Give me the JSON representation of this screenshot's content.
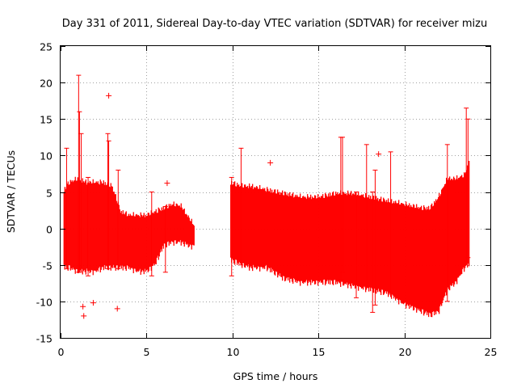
{
  "chart_data": {
    "type": "scatter",
    "title": "Day 331 of 2011, Sidereal Day-to-day VTEC variation (SDTVAR) for receiver mizu",
    "xlabel": "GPS time / hours",
    "ylabel": "SDTVAR / TECUs",
    "xlim": [
      0,
      25
    ],
    "ylim": [
      -15,
      25
    ],
    "xticks": [
      0,
      5,
      10,
      15,
      20,
      25
    ],
    "yticks": [
      -15,
      -10,
      -5,
      0,
      5,
      10,
      15,
      20,
      25
    ],
    "grid": true,
    "marker": "+",
    "series_color": "#ff0000",
    "series": [
      {
        "name": "SDTVAR",
        "envelope": {
          "x": [
            0.2,
            0.5,
            1.0,
            1.5,
            2.0,
            2.5,
            3.0,
            3.5,
            4.0,
            4.5,
            5.0,
            5.5,
            6.0,
            6.5,
            7.0,
            7.5,
            7.8
          ],
          "upper": [
            5,
            6,
            6.5,
            6,
            6,
            6,
            5.5,
            2,
            1.5,
            1.5,
            1.5,
            2,
            2.5,
            3,
            2.8,
            1,
            0
          ],
          "lower": [
            -5,
            -5,
            -5.5,
            -5.5,
            -5.5,
            -5,
            -5,
            -5,
            -5,
            -5.5,
            -5.5,
            -4.5,
            -2,
            -1.5,
            -1.5,
            -2,
            -2
          ]
        },
        "envelope2": {
          "x": [
            9.9,
            10.5,
            11,
            12,
            13,
            14,
            15,
            16,
            17,
            18,
            19,
            20,
            21,
            21.5,
            22,
            22.5,
            23,
            23.5,
            23.8
          ],
          "upper": [
            6,
            5.5,
            5.5,
            5,
            4.5,
            4,
            4,
            4.5,
            4.5,
            4,
            3.5,
            3,
            2.5,
            2.5,
            4,
            6.5,
            6.5,
            7,
            9
          ],
          "lower": [
            -4,
            -4.5,
            -5,
            -5,
            -6.5,
            -7,
            -7,
            -7,
            -7.5,
            -8,
            -8.5,
            -10,
            -11,
            -11.5,
            -11,
            -8,
            -7,
            -5,
            -4.5
          ]
        },
        "spikes": [
          {
            "x": 0.35,
            "lo": -5.5,
            "hi": 11
          },
          {
            "x": 1.05,
            "lo": -6,
            "hi": 21
          },
          {
            "x": 1.1,
            "lo": -6,
            "hi": 16
          },
          {
            "x": 1.2,
            "lo": -5.5,
            "hi": 13
          },
          {
            "x": 1.6,
            "lo": -6.5,
            "hi": 7
          },
          {
            "x": 2.75,
            "lo": -5.5,
            "hi": 13
          },
          {
            "x": 2.8,
            "lo": -5,
            "hi": 12
          },
          {
            "x": 3.35,
            "lo": -5.5,
            "hi": 8
          },
          {
            "x": 5.3,
            "lo": -6.5,
            "hi": 5
          },
          {
            "x": 6.1,
            "lo": -6,
            "hi": 3
          },
          {
            "x": 9.95,
            "lo": -6.5,
            "hi": 7
          },
          {
            "x": 10.5,
            "lo": -5,
            "hi": 11
          },
          {
            "x": 16.3,
            "lo": -7,
            "hi": 12.5
          },
          {
            "x": 16.4,
            "lo": -6,
            "hi": 12.5
          },
          {
            "x": 17.2,
            "lo": -9.5,
            "hi": 5
          },
          {
            "x": 17.8,
            "lo": -8,
            "hi": 11.5
          },
          {
            "x": 18.15,
            "lo": -11.5,
            "hi": 5
          },
          {
            "x": 18.3,
            "lo": -10.5,
            "hi": 8
          },
          {
            "x": 19.2,
            "lo": -9,
            "hi": 10.5
          },
          {
            "x": 22.5,
            "lo": -10,
            "hi": 11.5
          },
          {
            "x": 23.6,
            "lo": -4.5,
            "hi": 16.5
          },
          {
            "x": 23.7,
            "lo": -4,
            "hi": 15
          }
        ],
        "outliers": [
          {
            "x": 1.3,
            "y": -10.7
          },
          {
            "x": 1.35,
            "y": -12
          },
          {
            "x": 1.9,
            "y": -10.2
          },
          {
            "x": 2.8,
            "y": 18.2
          },
          {
            "x": 3.3,
            "y": -11
          },
          {
            "x": 6.2,
            "y": 6.2
          },
          {
            "x": 12.2,
            "y": 9
          },
          {
            "x": 18.5,
            "y": 10.2
          }
        ]
      }
    ]
  }
}
